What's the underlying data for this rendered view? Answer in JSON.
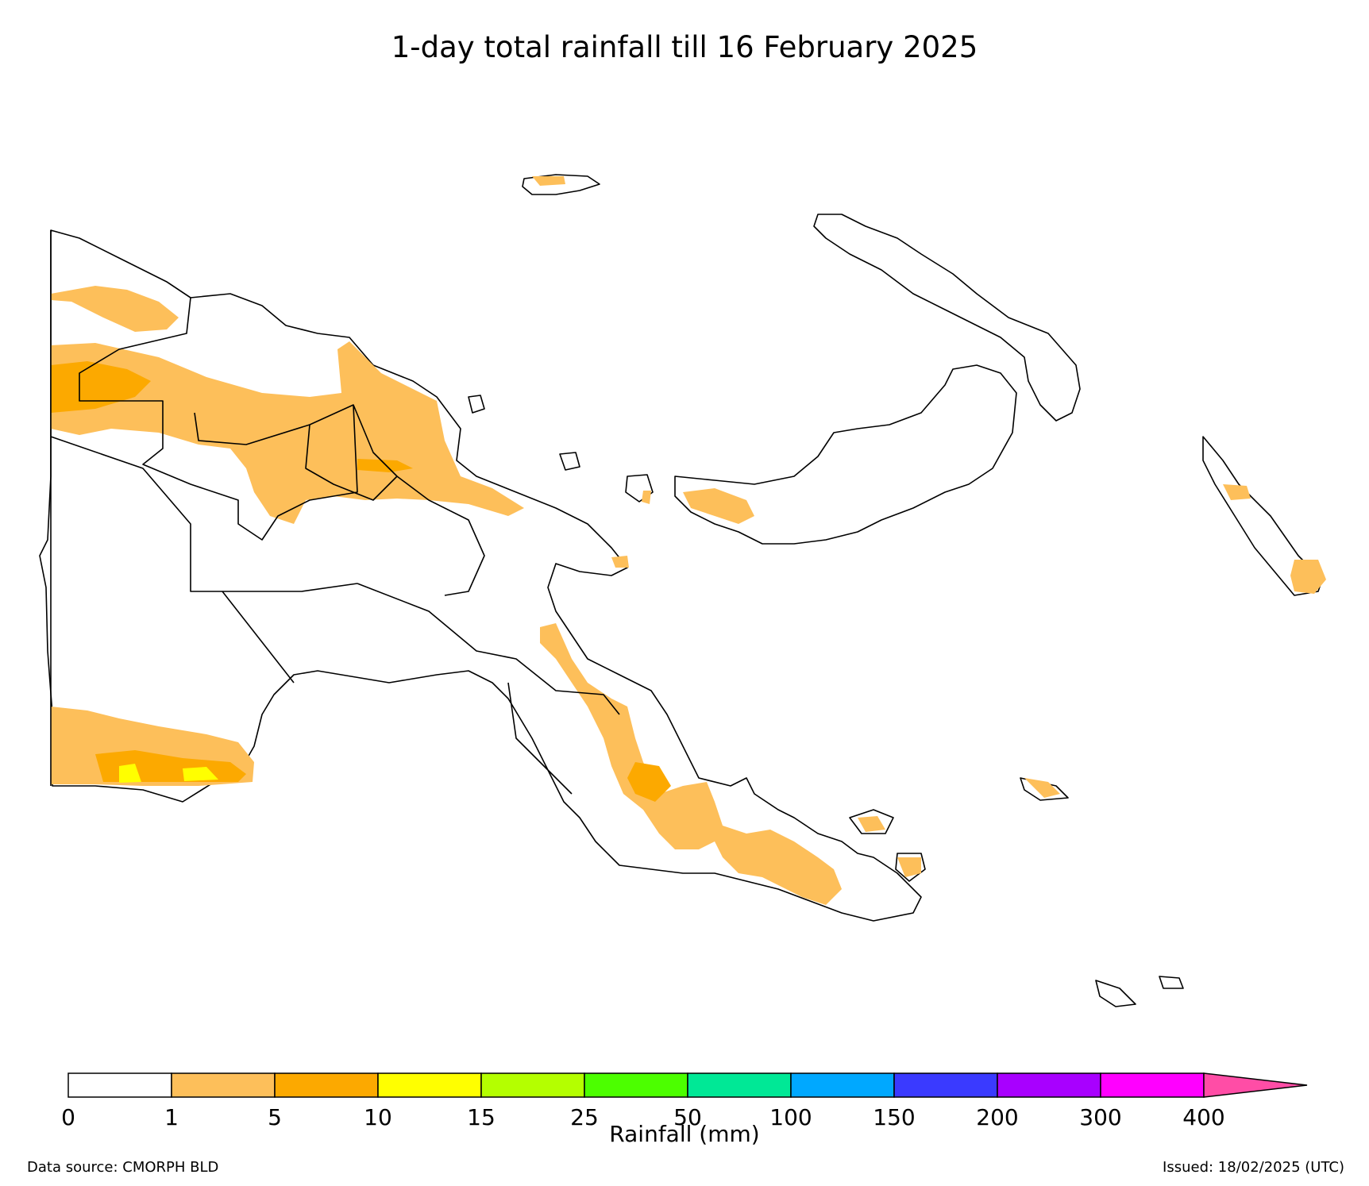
{
  "title": "1-day total rainfall till 16 February 2025",
  "colorbar": {
    "label": "Rainfall (mm)",
    "ticks": [
      "0",
      "1",
      "5",
      "10",
      "15",
      "25",
      "50",
      "100",
      "150",
      "200",
      "300",
      "400"
    ],
    "bins": [
      {
        "from": 0,
        "to": 1,
        "color": "#ffffff"
      },
      {
        "from": 1,
        "to": 5,
        "color": "#fdbf5a"
      },
      {
        "from": 5,
        "to": 10,
        "color": "#fca900"
      },
      {
        "from": 10,
        "to": 15,
        "color": "#ffff00"
      },
      {
        "from": 15,
        "to": 25,
        "color": "#b4ff00"
      },
      {
        "from": 25,
        "to": 50,
        "color": "#4cff00"
      },
      {
        "from": 50,
        "to": 100,
        "color": "#00e896"
      },
      {
        "from": 100,
        "to": 150,
        "color": "#00a8ff"
      },
      {
        "from": 150,
        "to": 200,
        "color": "#3a3aff"
      },
      {
        "from": 200,
        "to": 300,
        "color": "#a800ff"
      },
      {
        "from": 300,
        "to": 400,
        "color": "#ff00ff"
      }
    ],
    "extend_color": "#ff4da6"
  },
  "footer": {
    "source": "Data source: CMORPH BLD",
    "issued": "Issued: 18/02/2025 (UTC)"
  }
}
